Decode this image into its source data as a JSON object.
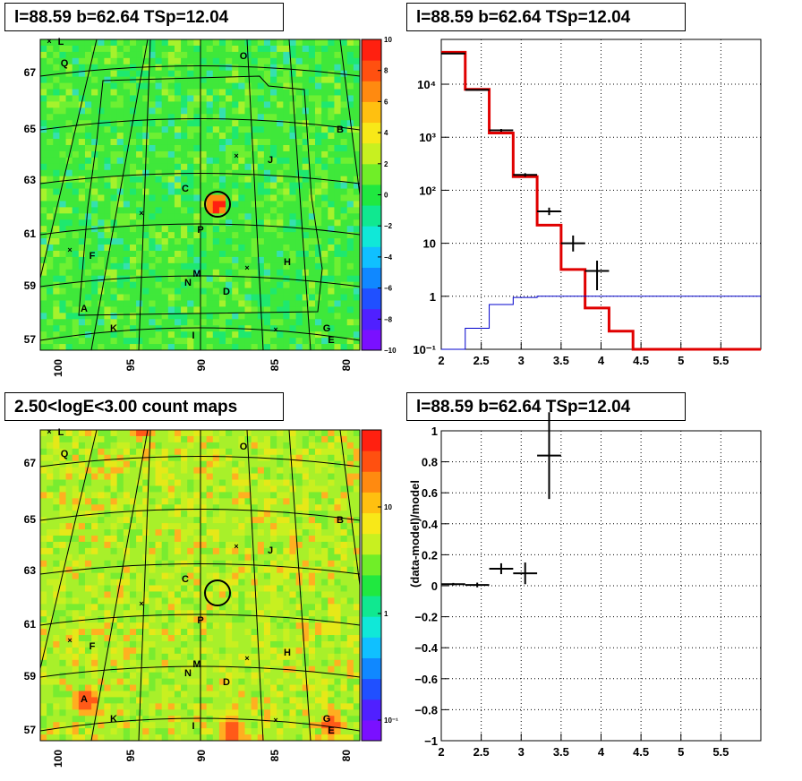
{
  "titles": {
    "tl": "l=88.59 b=62.64 TSp=12.04",
    "tr": "l=88.59 b=62.64 TSp=12.04",
    "bl": "2.50<logE<3.00 count maps",
    "br": "l=88.59 b=62.64 TSp=12.04"
  },
  "skymap": {
    "lon_ticks": [
      "100",
      "95",
      "90",
      "85",
      "80"
    ],
    "lat_ticks": [
      "67",
      "65",
      "63",
      "61",
      "59",
      "57"
    ],
    "source_labels": [
      "L",
      "Q",
      "O",
      "B",
      "J",
      "C",
      "P",
      "F",
      "M",
      "N",
      "H",
      "D",
      "A",
      "K",
      "I",
      "G",
      "E"
    ],
    "top_colorbar_ticks": [
      "10",
      "8",
      "6",
      "4",
      "2",
      "0",
      "−2",
      "−4",
      "−6",
      "−8",
      "−10"
    ],
    "bottom_colorbar_ticks": [
      "10",
      "1",
      "10⁻¹"
    ]
  },
  "chart_data": [
    {
      "type": "line",
      "title": "l=88.59 b=62.64 TSp=12.04",
      "xlabel": "",
      "ylabel": "",
      "xlim": [
        2,
        6
      ],
      "ylim": [
        0.1,
        70000
      ],
      "yscale": "log",
      "x_ticks": [
        "2",
        "2.5",
        "3",
        "3.5",
        "4",
        "4.5",
        "5",
        "5.5"
      ],
      "y_ticks": [
        "10⁻¹",
        "1",
        "10",
        "10²",
        "10³",
        "10⁴"
      ],
      "grid": true,
      "series": [
        {
          "style": "step",
          "color": "#e00000",
          "bin_edges": [
            2,
            2.3,
            2.6,
            2.9,
            3.2,
            3.5,
            3.8,
            4.1,
            4.4,
            6
          ],
          "values": [
            40000,
            8000,
            1200,
            180,
            22,
            3.2,
            0.6,
            0.22,
            0.1
          ]
        },
        {
          "style": "step",
          "color": "#0000cc",
          "bin_edges": [
            2,
            2.3,
            2.6,
            2.9,
            3.2,
            6
          ],
          "values": [
            0.1,
            0.25,
            0.7,
            0.95,
            1.0
          ]
        },
        {
          "style": "errorbars",
          "color": "#000000",
          "points": [
            {
              "x": 2.15,
              "xerr": 0.15,
              "y": 38000,
              "ylo": 37000,
              "yhi": 39000
            },
            {
              "x": 2.45,
              "xerr": 0.15,
              "y": 7800,
              "ylo": 7600,
              "yhi": 8000
            },
            {
              "x": 2.75,
              "xerr": 0.15,
              "y": 1350,
              "ylo": 1270,
              "yhi": 1430
            },
            {
              "x": 3.05,
              "xerr": 0.15,
              "y": 195,
              "ylo": 180,
              "yhi": 210
            },
            {
              "x": 3.35,
              "xerr": 0.15,
              "y": 40,
              "ylo": 34,
              "yhi": 47
            },
            {
              "x": 3.65,
              "xerr": 0.15,
              "y": 10,
              "ylo": 7,
              "yhi": 14
            },
            {
              "x": 3.95,
              "xerr": 0.15,
              "y": 3,
              "ylo": 1.3,
              "yhi": 4.7
            }
          ]
        }
      ]
    },
    {
      "type": "scatter",
      "title": "l=88.59 b=62.64 TSp=12.04",
      "xlabel": "",
      "ylabel": "(data-model)/model",
      "xlim": [
        2,
        6
      ],
      "ylim": [
        -1,
        1
      ],
      "x_ticks": [
        "2",
        "2.5",
        "3",
        "3.5",
        "4",
        "4.5",
        "5",
        "5.5"
      ],
      "y_ticks": [
        "−1",
        "−0.8",
        "−0.6",
        "−0.4",
        "−0.2",
        "0",
        "0.2",
        "0.4",
        "0.6",
        "0.8",
        "1"
      ],
      "grid": true,
      "series": [
        {
          "style": "errorbars",
          "color": "#000000",
          "points": [
            {
              "x": 2.15,
              "xerr": 0.15,
              "y": 0.01,
              "yerr": 0.008
            },
            {
              "x": 2.45,
              "xerr": 0.15,
              "y": 0.005,
              "yerr": 0.015
            },
            {
              "x": 2.75,
              "xerr": 0.15,
              "y": 0.11,
              "yerr": 0.035
            },
            {
              "x": 3.05,
              "xerr": 0.15,
              "y": 0.08,
              "yerr": 0.07
            },
            {
              "x": 3.35,
              "xerr": 0.15,
              "y": 0.84,
              "yerr": 0.28
            }
          ]
        }
      ]
    }
  ]
}
